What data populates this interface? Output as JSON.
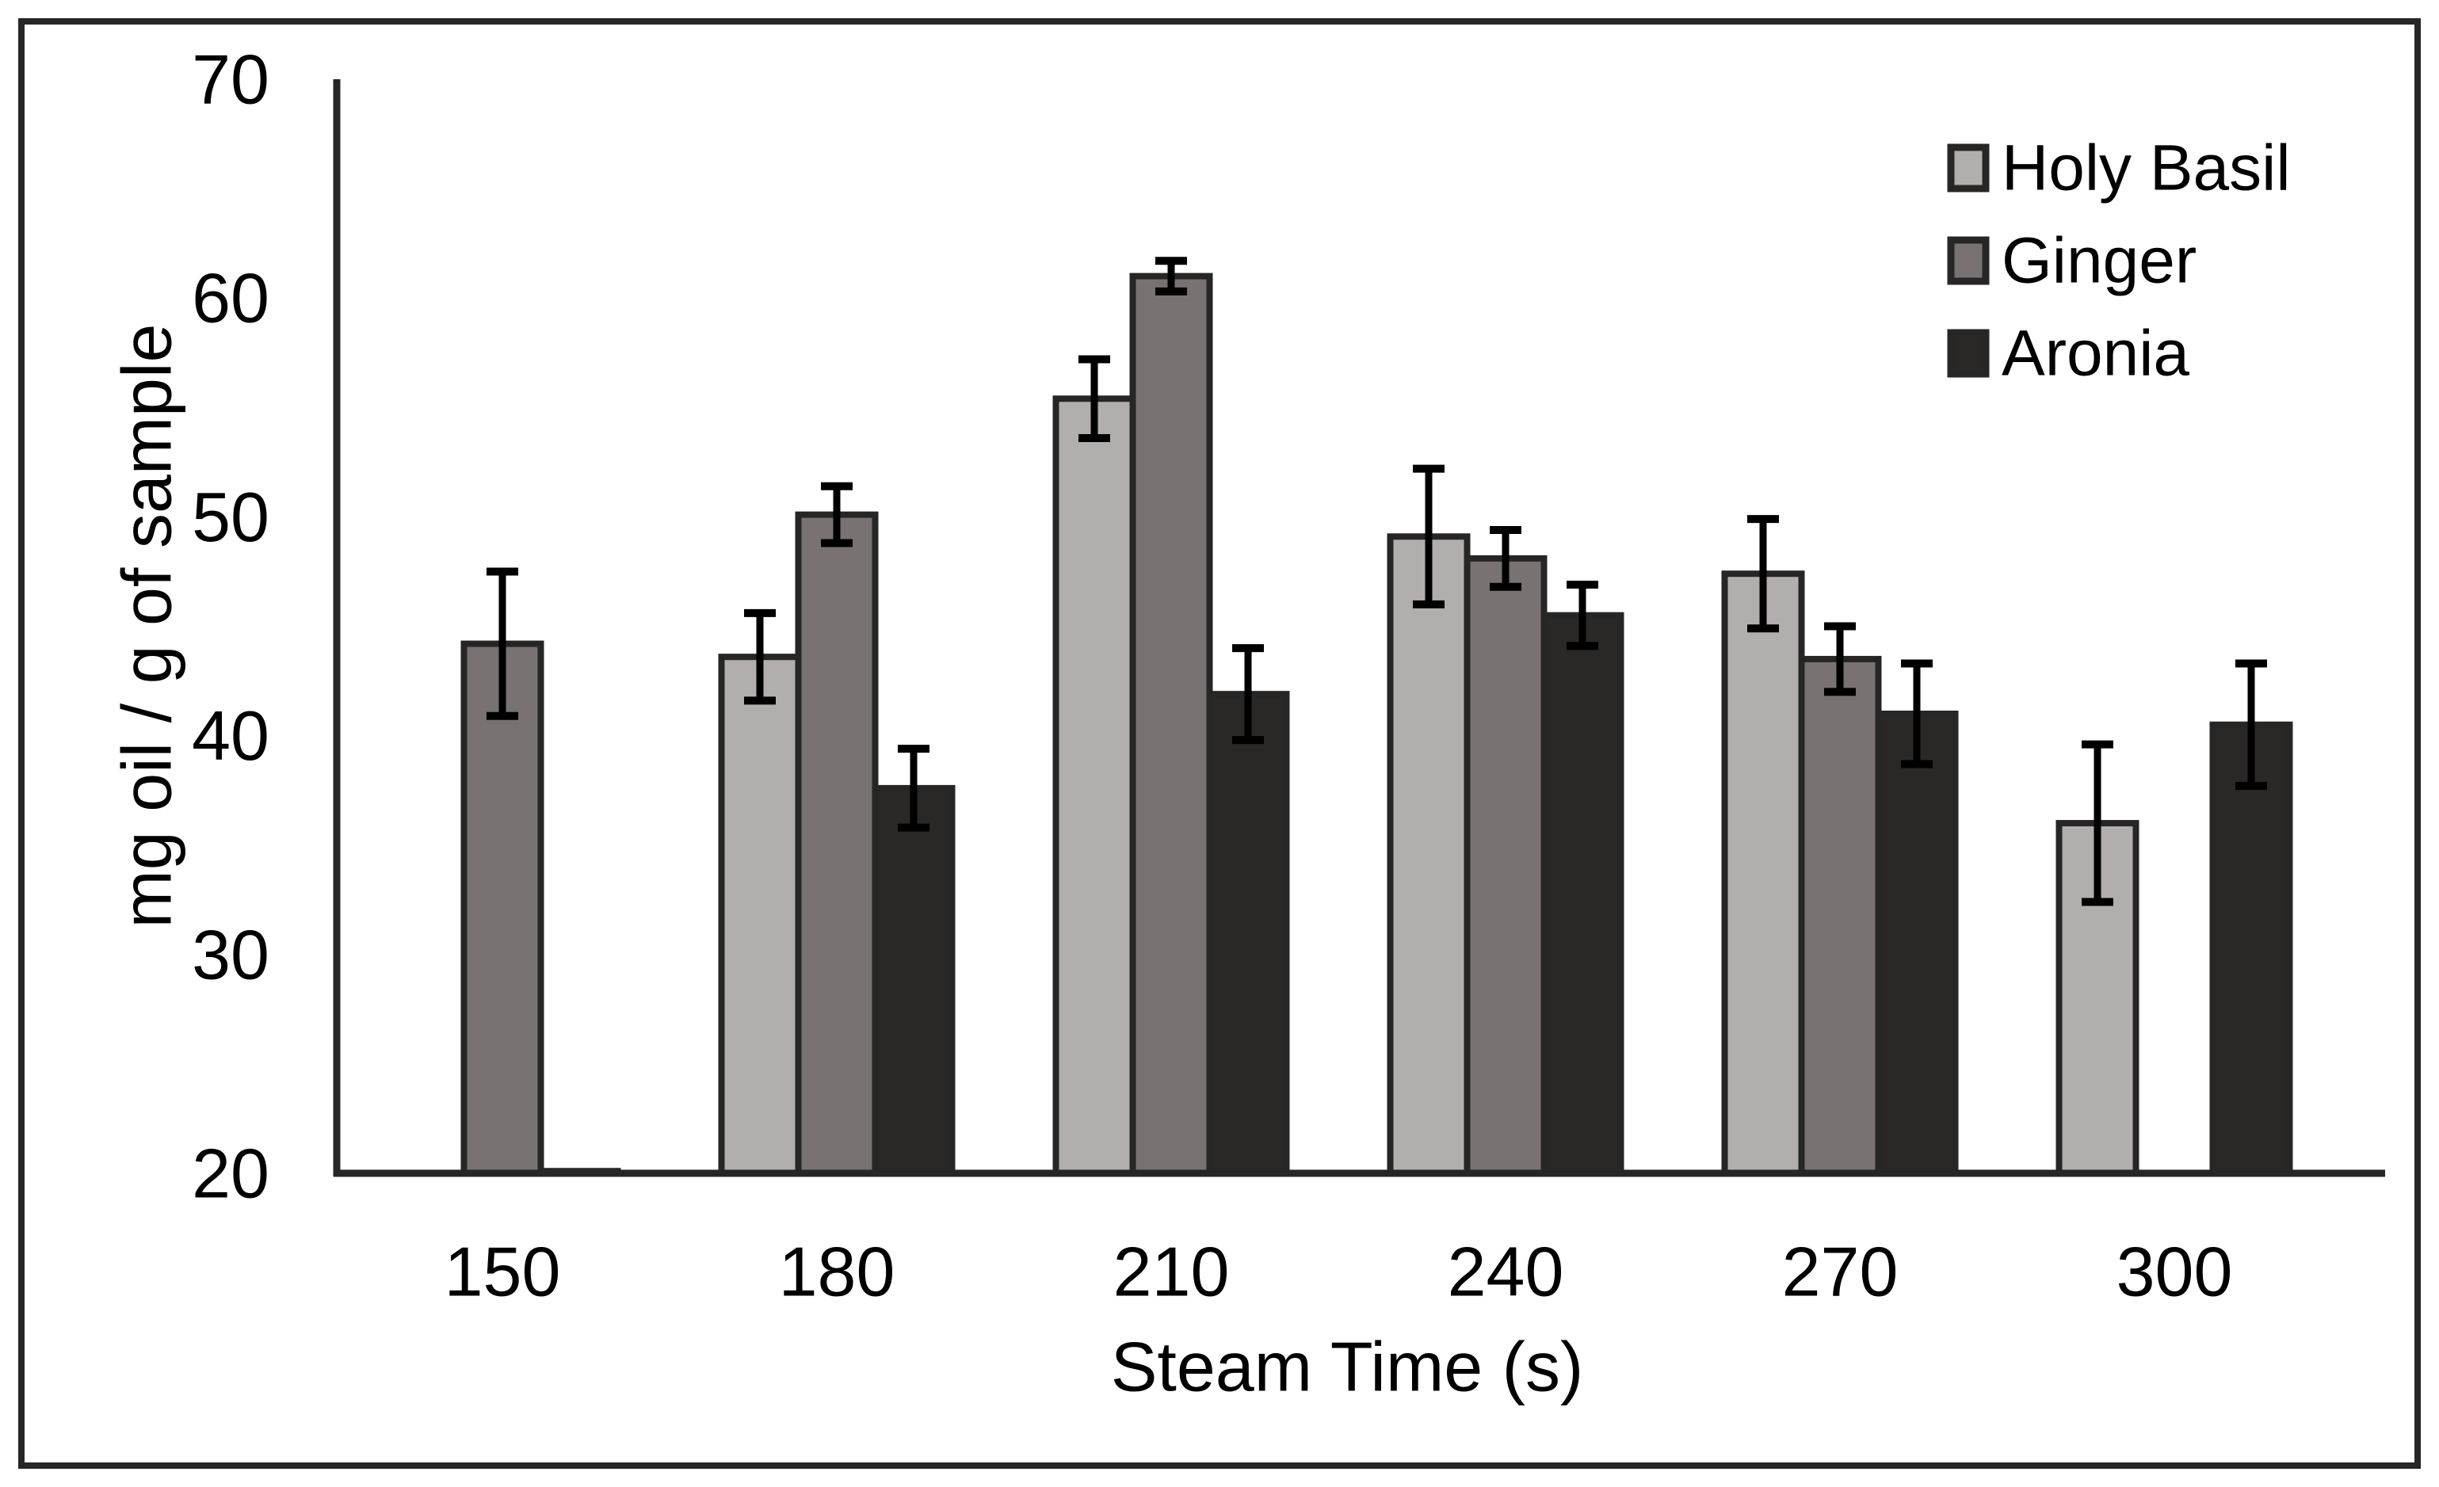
{
  "figure": {
    "background": "#ffffff",
    "frame_color": "#262626",
    "axis_color": "#262626",
    "error_bar_color": "#000000",
    "text_color": "#000000"
  },
  "chart_data": {
    "type": "bar",
    "title": "",
    "xlabel": "Steam Time (s)",
    "ylabel": "mg oil / g of sample",
    "x_categories": [
      "150",
      "180",
      "210",
      "240",
      "270",
      "300"
    ],
    "ylim": [
      20,
      70
    ],
    "yticks": [
      20,
      30,
      40,
      50,
      60,
      70
    ],
    "grid": false,
    "legend_position": "top-right",
    "error_bars": true,
    "bar_edge_color": "#262626",
    "series": [
      {
        "name": "Holy Basil",
        "color": "#b3aeae",
        "values": [
          null,
          43.6,
          55.4,
          49.1,
          47.4,
          36.0
        ],
        "errors": [
          null,
          2.0,
          1.8,
          3.1,
          2.5,
          3.6
        ]
      },
      {
        "name": "Ginger",
        "color": "#787272",
        "values": [
          44.2,
          50.1,
          61.0,
          48.1,
          43.5,
          null
        ],
        "errors": [
          3.3,
          1.3,
          0.7,
          1.3,
          1.5,
          null
        ]
      },
      {
        "name": "Aronia",
        "color": "#2a2727",
        "values": [
          20.1,
          37.6,
          41.9,
          45.5,
          41.0,
          40.5
        ],
        "errors": [
          0,
          1.8,
          2.1,
          1.4,
          2.3,
          2.8
        ]
      }
    ]
  }
}
